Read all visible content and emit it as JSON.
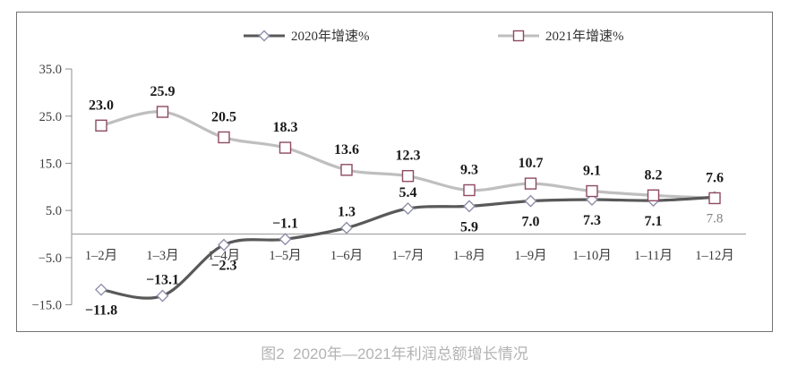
{
  "legend": {
    "entries": [
      {
        "label": "2020年增速%",
        "marker": "diamond"
      },
      {
        "label": "2021年增速%",
        "marker": "square"
      }
    ]
  },
  "caption": {
    "text": "图2  2020年—2021年利润总额增长情况"
  },
  "colors": {
    "frame_border": "#737373",
    "axis": "#8c8c8c",
    "zero_line": "#a6a6a6",
    "axis_text": "#3d3d3d",
    "label_text": "#1a1a1a",
    "muted_label_text": "#7f7f7f",
    "caption_text": "#b3b3b3"
  },
  "chart_data": {
    "type": "line",
    "title": "图2 2020年—2021年利润总额增长情况",
    "categories": [
      "1–2月",
      "1–3月",
      "1–4月",
      "1–5月",
      "1–6月",
      "1–7月",
      "1–8月",
      "1–9月",
      "1–10月",
      "1–11月",
      "1–12月"
    ],
    "series": [
      {
        "name": "2020年增速%",
        "marker": "diamond",
        "line_color": "#595959",
        "marker_stroke": "#8f8fa8",
        "marker_fill": "#ffffff",
        "values": [
          -11.8,
          -13.1,
          -2.3,
          -1.1,
          1.3,
          5.4,
          5.9,
          7.0,
          7.3,
          7.1,
          7.8
        ],
        "labels": [
          "−11.8",
          "−13.1",
          "−2.3",
          "−1.1",
          "1.3",
          "5.4",
          "5.9",
          "7.0",
          "7.3",
          "7.1",
          "7.8"
        ],
        "label_position": [
          "below",
          "above",
          "below",
          "above",
          "above",
          "above",
          "below",
          "below",
          "below",
          "below",
          "below"
        ],
        "label_muted": [
          false,
          false,
          false,
          false,
          false,
          false,
          false,
          false,
          false,
          false,
          true
        ]
      },
      {
        "name": "2021年增速%",
        "marker": "square",
        "line_color": "#bfbfbf",
        "marker_stroke": "#8e4a64",
        "marker_fill": "#ffffff",
        "values": [
          23.0,
          25.9,
          20.5,
          18.3,
          13.6,
          12.3,
          9.3,
          10.7,
          9.1,
          8.2,
          7.6
        ],
        "labels": [
          "23.0",
          "25.9",
          "20.5",
          "18.3",
          "13.6",
          "12.3",
          "9.3",
          "10.7",
          "9.1",
          "8.2",
          "7.6"
        ],
        "label_position": [
          "above",
          "above",
          "above",
          "above",
          "above",
          "above",
          "above",
          "above",
          "above",
          "above",
          "above"
        ],
        "label_muted": [
          false,
          false,
          false,
          false,
          false,
          false,
          false,
          false,
          false,
          false,
          false
        ]
      }
    ],
    "ylim": [
      -15,
      35
    ],
    "yticks": [
      35.0,
      25.0,
      15.0,
      5.0,
      -5.0,
      -15.0
    ],
    "ytick_labels": [
      "35.0",
      "25.0",
      "15.0",
      "5.0",
      "−5.0",
      "−15.0"
    ],
    "grid": false,
    "legend_position": "top"
  }
}
